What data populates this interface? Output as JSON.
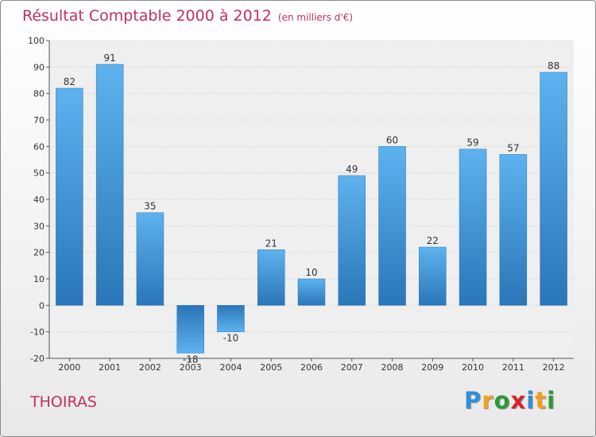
{
  "chart_data": {
    "type": "bar",
    "title": "Résultat Comptable 2000 à 2012",
    "subtitle": "(en milliers d'€)",
    "categories": [
      "2000",
      "2001",
      "2002",
      "2003",
      "2004",
      "2005",
      "2006",
      "2007",
      "2008",
      "2009",
      "2010",
      "2011",
      "2012"
    ],
    "values": [
      82,
      91,
      35,
      -18,
      -10,
      21,
      10,
      49,
      60,
      22,
      59,
      57,
      88
    ],
    "value_labels": [
      "82",
      "91",
      "35",
      "-18",
      "-10",
      "21",
      "10",
      "49",
      "60",
      "22",
      "59",
      "57",
      "88"
    ],
    "ylim": [
      -20,
      100
    ],
    "yticks": [
      "-20",
      "-10",
      "0",
      "10",
      "20",
      "30",
      "40",
      "50",
      "60",
      "70",
      "80",
      "90",
      "100"
    ],
    "grid": true,
    "bar_color": "#3a8fd6",
    "title_color": "#c0305e"
  },
  "commune": "THOIRAS",
  "logo": {
    "letters": [
      "P",
      "r",
      "o",
      "x",
      "i",
      "t",
      "i"
    ],
    "colors": [
      "#2f8fd8",
      "#f0a020",
      "#2a9a3a",
      "#d8242a",
      "#2f8fd8",
      "#f0a020",
      "#2a9a3a"
    ]
  }
}
